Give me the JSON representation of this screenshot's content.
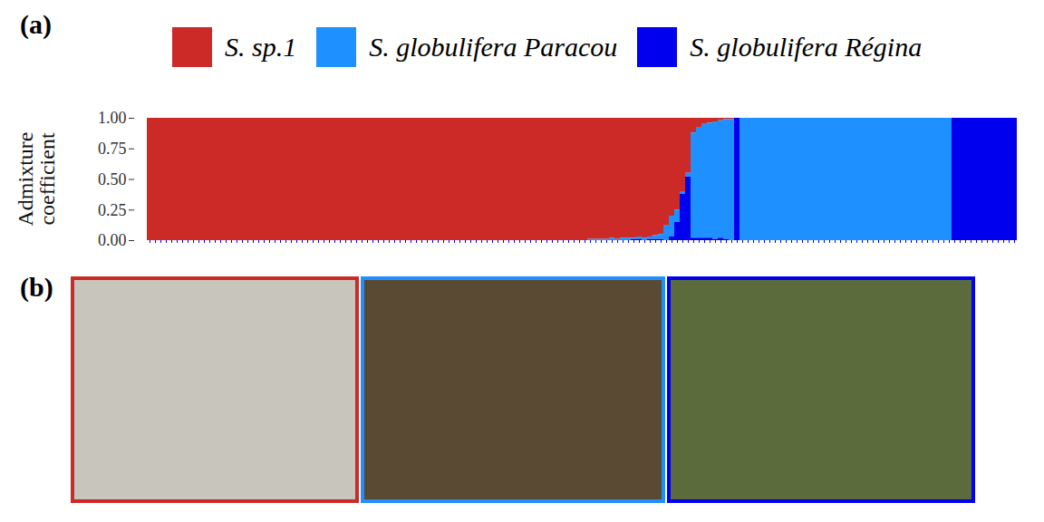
{
  "chart_data": {
    "type": "bar",
    "stacked": true,
    "legend": "top",
    "tick_labels": "y",
    "y_label": "Admixture coefficient",
    "panel_labels": [
      "(a)",
      "(b)"
    ],
    "ylim": [
      0,
      1
    ],
    "yticks": [
      {
        "value": 0,
        "label": "0.00"
      },
      {
        "value": 0.25,
        "label": "0.25"
      },
      {
        "value": 0.5,
        "label": "0.50"
      },
      {
        "value": 0.75,
        "label": "0.75"
      },
      {
        "value": 1,
        "label": "1.00"
      }
    ],
    "categories": [
      null,
      null,
      null,
      null,
      null,
      null,
      null,
      null,
      null,
      null,
      null,
      null,
      null,
      null,
      null,
      null,
      null,
      null,
      null,
      null,
      null,
      null,
      null,
      null,
      null,
      null,
      null,
      null,
      null,
      null,
      null,
      null,
      null,
      null,
      null,
      null,
      null,
      null,
      null,
      null,
      null,
      null,
      null,
      null,
      null,
      null,
      null,
      null,
      null,
      null,
      null,
      null,
      null,
      null,
      null,
      null,
      null,
      null,
      null,
      null,
      null,
      null,
      null,
      null,
      null,
      null,
      null,
      null,
      null,
      null,
      null,
      null,
      null,
      null,
      null,
      null,
      null,
      null,
      null,
      null,
      null,
      null,
      null,
      null,
      null,
      null,
      null,
      null,
      null,
      null,
      null,
      null,
      null,
      null,
      null,
      null,
      null,
      null,
      null,
      null,
      null,
      null,
      null,
      null,
      null,
      null,
      null,
      null,
      null,
      null,
      null,
      null,
      null,
      null,
      null,
      null,
      null,
      null,
      null,
      null,
      null,
      null,
      null,
      null,
      null,
      null,
      null,
      null,
      null,
      null,
      null,
      null,
      null,
      null,
      null,
      null,
      null,
      null,
      null,
      null,
      null,
      null,
      null,
      null,
      null,
      null,
      null,
      null,
      null,
      null,
      null,
      null,
      null,
      null,
      null,
      null,
      null,
      null,
      null,
      null
    ],
    "series": [
      {
        "name": "S. sp.1",
        "color": "#cc2a27",
        "values": [
          1,
          1,
          1,
          1,
          1,
          1,
          1,
          1,
          1,
          1,
          1,
          1,
          1,
          1,
          1,
          1,
          1,
          1,
          1,
          1,
          1,
          1,
          1,
          1,
          1,
          1,
          1,
          1,
          1,
          1,
          1,
          1,
          1,
          1,
          1,
          1,
          1,
          1,
          1,
          1,
          1,
          1,
          1,
          1,
          1,
          1,
          1,
          1,
          1,
          1,
          1,
          1,
          1,
          1,
          1,
          1,
          1,
          1,
          1,
          1,
          1,
          1,
          1,
          1,
          1,
          1,
          1,
          1,
          1,
          1,
          1,
          1,
          1,
          1,
          1,
          1,
          1,
          1,
          1,
          1,
          1,
          0.99,
          0.99,
          0.99,
          0.99,
          0.98,
          0.99,
          0.98,
          0.98,
          0.98,
          0.97,
          0.98,
          0.97,
          0.96,
          0.95,
          0.88,
          0.8,
          0.75,
          0.6,
          0.45,
          0.12,
          0.08,
          0.05,
          0.04,
          0.03,
          0.02,
          0.01,
          0.01,
          0,
          0,
          0,
          0,
          0,
          0,
          0,
          0,
          0,
          0,
          0,
          0,
          0,
          0,
          0,
          0,
          0,
          0,
          0,
          0,
          0,
          0,
          0,
          0,
          0,
          0,
          0,
          0,
          0,
          0,
          0,
          0,
          0,
          0,
          0,
          0,
          0,
          0,
          0,
          0,
          0,
          0,
          0,
          0,
          0,
          0,
          0,
          0,
          0,
          0,
          0,
          0
        ]
      },
      {
        "name": "S. globulifera Paracou",
        "color": "#1e90ff",
        "values": [
          0,
          0,
          0,
          0,
          0,
          0,
          0,
          0,
          0,
          0,
          0,
          0,
          0,
          0,
          0,
          0,
          0,
          0,
          0,
          0,
          0,
          0,
          0,
          0,
          0,
          0,
          0,
          0,
          0,
          0,
          0,
          0,
          0,
          0,
          0,
          0,
          0,
          0,
          0,
          0,
          0,
          0,
          0,
          0,
          0,
          0,
          0,
          0,
          0,
          0,
          0,
          0,
          0,
          0,
          0,
          0,
          0,
          0,
          0,
          0,
          0,
          0,
          0,
          0,
          0,
          0,
          0,
          0,
          0,
          0,
          0,
          0,
          0,
          0,
          0,
          0,
          0,
          0,
          0,
          0,
          0,
          0.01,
          0.01,
          0.01,
          0.01,
          0.02,
          0.01,
          0.02,
          0.02,
          0.01,
          0.02,
          0.02,
          0.02,
          0.03,
          0.04,
          0.12,
          0.17,
          0.1,
          0.02,
          0.03,
          0.86,
          0.9,
          0.93,
          0.94,
          0.96,
          0.96,
          0.98,
          0.99,
          0,
          1,
          1,
          1,
          1,
          1,
          1,
          1,
          1,
          1,
          1,
          1,
          1,
          1,
          1,
          1,
          1,
          1,
          1,
          1,
          1,
          1,
          1,
          1,
          1,
          1,
          1,
          1,
          1,
          1,
          1,
          1,
          1,
          1,
          1,
          1,
          1,
          1,
          1,
          1,
          0,
          0,
          0,
          0,
          0,
          0,
          0,
          0,
          0,
          0,
          0,
          0
        ]
      },
      {
        "name": "S. globulifera Régina",
        "color": "#0000ee",
        "values": [
          0,
          0,
          0,
          0,
          0,
          0,
          0,
          0,
          0,
          0,
          0,
          0,
          0,
          0,
          0,
          0,
          0,
          0,
          0,
          0,
          0,
          0,
          0,
          0,
          0,
          0,
          0,
          0,
          0,
          0,
          0,
          0,
          0,
          0,
          0,
          0,
          0,
          0,
          0,
          0,
          0,
          0,
          0,
          0,
          0,
          0,
          0,
          0,
          0,
          0,
          0,
          0,
          0,
          0,
          0,
          0,
          0,
          0,
          0,
          0,
          0,
          0,
          0,
          0,
          0,
          0,
          0,
          0,
          0,
          0,
          0,
          0,
          0,
          0,
          0,
          0,
          0,
          0,
          0,
          0,
          0,
          0,
          0,
          0,
          0,
          0,
          0,
          0,
          0,
          0.01,
          0.01,
          0,
          0.01,
          0.01,
          0.01,
          0,
          0.03,
          0.15,
          0.38,
          0.52,
          0.02,
          0.02,
          0.02,
          0.02,
          0.01,
          0.02,
          0.01,
          0,
          1,
          0,
          0,
          0,
          0,
          0,
          0,
          0,
          0,
          0,
          0,
          0,
          0,
          0,
          0,
          0,
          0,
          0,
          0,
          0,
          0,
          0,
          0,
          0,
          0,
          0,
          0,
          0,
          0,
          0,
          0,
          0,
          0,
          0,
          0,
          0,
          0,
          0,
          0,
          0,
          1,
          1,
          1,
          1,
          1,
          1,
          1,
          1,
          1,
          1,
          1,
          1
        ]
      }
    ]
  }
}
